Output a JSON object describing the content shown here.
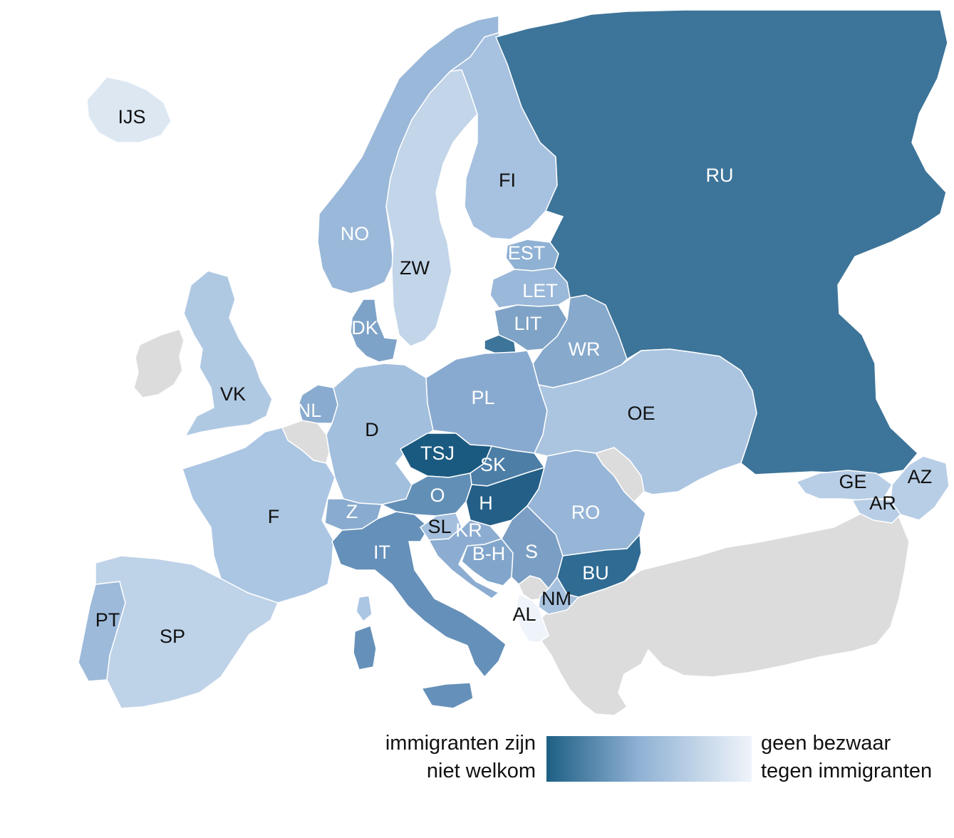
{
  "colors": {
    "background": "#ffffff",
    "no_data": "#dcdcdc",
    "border": "#ffffff",
    "scale_dark": "#1d5f84",
    "scale_light": "#eff4fa",
    "label_dark": "#111111",
    "label_light": "#ffffff"
  },
  "countries": [
    {
      "code": "IJS",
      "level": 0.12,
      "color": "#dce7f2"
    },
    {
      "code": "NO",
      "level": 0.45,
      "color": "#9ab8d9"
    },
    {
      "code": "ZW",
      "level": 0.2,
      "color": "#c2d5e9"
    },
    {
      "code": "FI",
      "level": 0.35,
      "color": "#a7c2e0"
    },
    {
      "code": "RU",
      "level": 0.85,
      "color": "#3d7499"
    },
    {
      "code": "EST",
      "level": 0.5,
      "color": "#8fb1d4"
    },
    {
      "code": "LET",
      "level": 0.45,
      "color": "#9ab8d9"
    },
    {
      "code": "LIT",
      "level": 0.6,
      "color": "#7fa3c6"
    },
    {
      "code": "WR",
      "level": 0.55,
      "color": "#86a9cc"
    },
    {
      "code": "DK",
      "level": 0.6,
      "color": "#7ea3c8"
    },
    {
      "code": "VK",
      "level": 0.3,
      "color": "#b0c9e3"
    },
    {
      "code": "NL",
      "level": 0.55,
      "color": "#89abcf"
    },
    {
      "code": "D",
      "level": 0.35,
      "color": "#a2bfdd"
    },
    {
      "code": "PL",
      "level": 0.5,
      "color": "#89aad0"
    },
    {
      "code": "OE",
      "level": 0.3,
      "color": "#abc5e1"
    },
    {
      "code": "TSJ",
      "level": 0.95,
      "color": "#1b5a80"
    },
    {
      "code": "SK",
      "level": 0.75,
      "color": "#4c7ea6"
    },
    {
      "code": "O",
      "level": 0.65,
      "color": "#628fb6"
    },
    {
      "code": "H",
      "level": 0.92,
      "color": "#235f87"
    },
    {
      "code": "F",
      "level": 0.3,
      "color": "#abc6e3"
    },
    {
      "code": "Z",
      "level": 0.55,
      "color": "#89abcf"
    },
    {
      "code": "IT",
      "level": 0.65,
      "color": "#6590b9"
    },
    {
      "code": "SL",
      "level": 0.35,
      "color": "#a3bfdd"
    },
    {
      "code": "KR",
      "level": 0.5,
      "color": "#8cadd1"
    },
    {
      "code": "B-H",
      "level": 0.55,
      "color": "#82a6cb"
    },
    {
      "code": "S",
      "level": 0.6,
      "color": "#7a9ec4"
    },
    {
      "code": "RO",
      "level": 0.45,
      "color": "#96b5d7"
    },
    {
      "code": "BU",
      "level": 0.85,
      "color": "#2f6b93"
    },
    {
      "code": "NM",
      "level": 0.35,
      "color": "#a6c1de"
    },
    {
      "code": "AL",
      "level": 0.05,
      "color": "#eef4fa"
    },
    {
      "code": "PT",
      "level": 0.4,
      "color": "#9dbada"
    },
    {
      "code": "SP",
      "level": 0.25,
      "color": "#bed2e8"
    },
    {
      "code": "GE",
      "level": 0.25,
      "color": "#b8cee6"
    },
    {
      "code": "AR",
      "level": 0.25,
      "color": "#b8cee6"
    },
    {
      "code": "AZ",
      "level": 0.25,
      "color": "#b8cee6"
    }
  ],
  "legend": {
    "left_line1": "immigranten zijn",
    "left_line2": "niet welkom",
    "right_line1": "geen bezwaar",
    "right_line2": "tegen immigranten"
  }
}
